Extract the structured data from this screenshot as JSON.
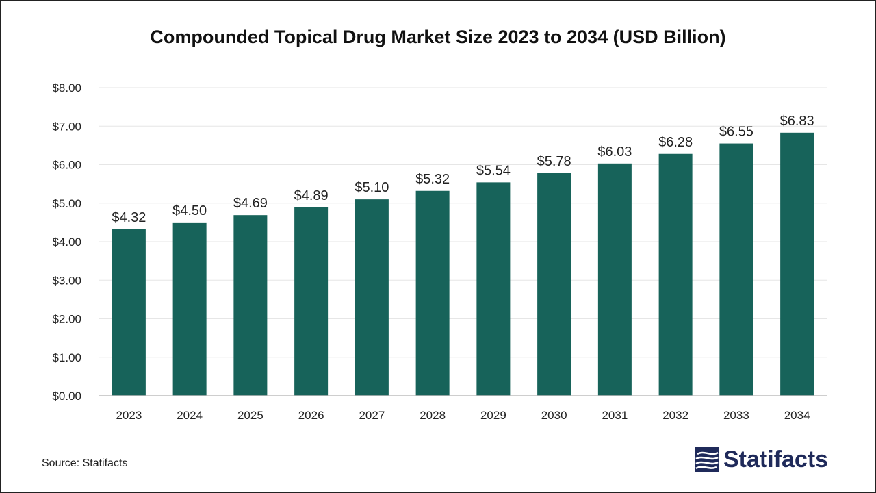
{
  "title": "Compounded Topical Drug Market Size 2023 to 2034 (USD Billion)",
  "source": "Source: Statifacts",
  "logo_text": "Statifacts",
  "colors": {
    "bar": "#17635a",
    "grid": "#e6e6e6",
    "axis": "#bdbdbd",
    "text": "#222222",
    "logo": "#1f2a5a"
  },
  "chart_data": {
    "type": "bar",
    "title": "Compounded Topical Drug Market Size 2023 to 2034 (USD Billion)",
    "xlabel": "",
    "ylabel": "",
    "categories": [
      "2023",
      "2024",
      "2025",
      "2026",
      "2027",
      "2028",
      "2029",
      "2030",
      "2031",
      "2032",
      "2033",
      "2034"
    ],
    "values": [
      4.32,
      4.5,
      4.69,
      4.89,
      5.1,
      5.32,
      5.54,
      5.78,
      6.03,
      6.28,
      6.55,
      6.83
    ],
    "data_labels": [
      "$4.32",
      "$4.50",
      "$4.69",
      "$4.89",
      "$5.10",
      "$5.32",
      "$5.54",
      "$5.78",
      "$6.03",
      "$6.28",
      "$6.55",
      "$6.83"
    ],
    "ylim": [
      0,
      8
    ],
    "y_ticks": [
      0,
      1,
      2,
      3,
      4,
      5,
      6,
      7,
      8
    ],
    "y_tick_labels": [
      "$0.00",
      "$1.00",
      "$2.00",
      "$3.00",
      "$4.00",
      "$5.00",
      "$6.00",
      "$7.00",
      "$8.00"
    ],
    "grid": true,
    "legend": "none"
  }
}
